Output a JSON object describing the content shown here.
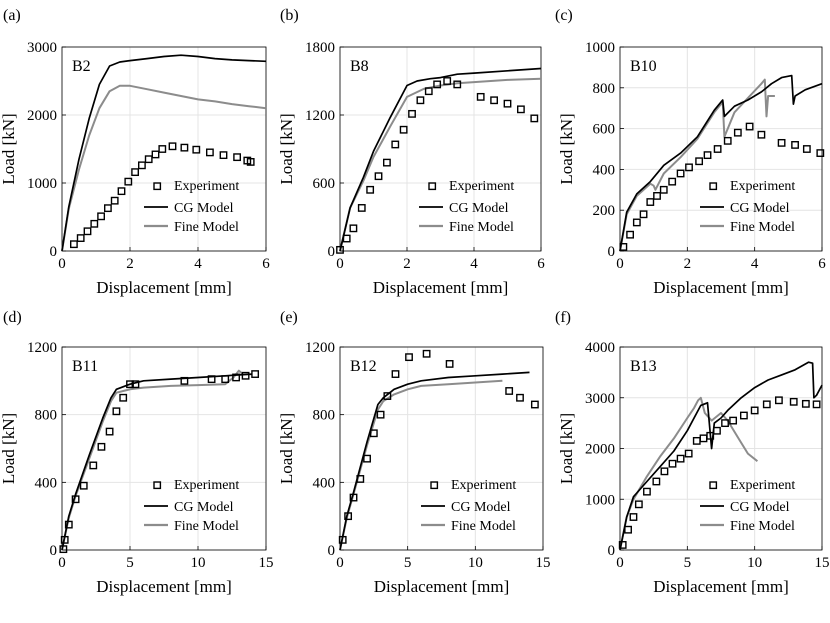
{
  "legend_labels": {
    "experiment": "Experiment",
    "cg": "CG Model",
    "fine": "Fine Model"
  },
  "colors": {
    "cg": "#000000",
    "fine": "#8c8c8c",
    "experiment": "#000000",
    "grid": "#e4e4e4"
  },
  "chart_data": [
    {
      "panel": "(a)",
      "type": "line",
      "title": "B2",
      "xlabel": "Displacement [mm]",
      "ylabel": "Load [kN]",
      "xlim": [
        0,
        6
      ],
      "ylim": [
        0,
        3000
      ],
      "xticks": [
        0,
        2,
        4,
        6
      ],
      "yticks": [
        0,
        1000,
        2000,
        3000
      ],
      "legend": "bottom-right",
      "grid": true,
      "series": [
        {
          "name": "CG Model",
          "x": [
            0,
            0.2,
            0.5,
            0.8,
            1.1,
            1.4,
            1.7,
            2.0,
            2.5,
            3.0,
            3.5,
            4.0,
            4.5,
            5.0,
            5.5,
            6.0
          ],
          "y": [
            0,
            650,
            1350,
            1950,
            2450,
            2720,
            2780,
            2800,
            2830,
            2860,
            2880,
            2860,
            2830,
            2810,
            2800,
            2790
          ]
        },
        {
          "name": "Fine Model",
          "x": [
            0,
            0.2,
            0.5,
            0.8,
            1.1,
            1.4,
            1.7,
            2.0,
            2.5,
            3.0,
            3.5,
            4.0,
            4.5,
            5.0,
            5.5,
            6.0
          ],
          "y": [
            0,
            620,
            1200,
            1700,
            2100,
            2350,
            2430,
            2430,
            2380,
            2330,
            2280,
            2230,
            2200,
            2160,
            2130,
            2100
          ]
        },
        {
          "name": "Experiment",
          "x": [
            0.35,
            0.55,
            0.75,
            0.95,
            1.15,
            1.35,
            1.55,
            1.75,
            1.95,
            2.15,
            2.35,
            2.55,
            2.75,
            2.95,
            3.25,
            3.6,
            3.95,
            4.35,
            4.75,
            5.15,
            5.45,
            5.55
          ],
          "y": [
            100,
            190,
            290,
            400,
            510,
            630,
            740,
            880,
            1020,
            1160,
            1260,
            1350,
            1420,
            1500,
            1540,
            1520,
            1490,
            1450,
            1410,
            1380,
            1330,
            1310
          ]
        }
      ]
    },
    {
      "panel": "(b)",
      "type": "line",
      "title": "B8",
      "xlabel": "Displacement [mm]",
      "ylabel": "Load [kN]",
      "xlim": [
        0,
        6
      ],
      "ylim": [
        0,
        1800
      ],
      "xticks": [
        0,
        2,
        4,
        6
      ],
      "yticks": [
        0,
        600,
        1200,
        1800
      ],
      "legend": "bottom-right",
      "grid": true,
      "series": [
        {
          "name": "CG Model",
          "x": [
            0,
            0.3,
            0.7,
            1.0,
            1.5,
            2.0,
            2.3,
            2.7,
            3.0,
            3.5,
            4.0,
            5.0,
            6.0
          ],
          "y": [
            0,
            380,
            650,
            880,
            1180,
            1460,
            1500,
            1520,
            1530,
            1560,
            1570,
            1590,
            1610
          ]
        },
        {
          "name": "Fine Model",
          "x": [
            0,
            0.3,
            0.7,
            1.0,
            1.5,
            2.0,
            2.5,
            3.0,
            3.5,
            4.0,
            5.0,
            6.0
          ],
          "y": [
            0,
            380,
            620,
            830,
            1100,
            1360,
            1430,
            1460,
            1480,
            1490,
            1510,
            1520
          ]
        },
        {
          "name": "Experiment",
          "x": [
            0,
            0.2,
            0.4,
            0.65,
            0.9,
            1.15,
            1.4,
            1.65,
            1.9,
            2.15,
            2.4,
            2.65,
            2.9,
            3.2,
            3.5,
            4.2,
            4.6,
            5.0,
            5.4,
            5.8
          ],
          "y": [
            10,
            110,
            200,
            380,
            540,
            660,
            780,
            940,
            1070,
            1210,
            1330,
            1410,
            1470,
            1500,
            1470,
            1360,
            1330,
            1300,
            1250,
            1170
          ]
        }
      ]
    },
    {
      "panel": "(c)",
      "type": "line",
      "title": "B10",
      "xlabel": "Displacement [mm]",
      "ylabel": "Load [kN]",
      "xlim": [
        0,
        6
      ],
      "ylim": [
        0,
        1000
      ],
      "xticks": [
        0,
        2,
        4,
        6
      ],
      "yticks": [
        0,
        200,
        400,
        600,
        800,
        1000
      ],
      "legend": "bottom-right",
      "grid": true,
      "series": [
        {
          "name": "CG Model",
          "x": [
            0,
            0.2,
            0.5,
            0.9,
            1.3,
            1.8,
            2.3,
            2.8,
            3.0,
            3.05,
            3.1,
            3.4,
            3.8,
            4.2,
            4.5,
            4.8,
            5.1,
            5.15,
            5.2,
            5.5,
            6.0
          ],
          "y": [
            0,
            190,
            280,
            340,
            420,
            480,
            560,
            690,
            730,
            740,
            660,
            710,
            740,
            780,
            820,
            850,
            860,
            720,
            760,
            790,
            820
          ]
        },
        {
          "name": "Fine Model",
          "x": [
            0,
            0.2,
            0.5,
            0.9,
            1.0,
            1.05,
            1.3,
            1.8,
            2.3,
            2.8,
            3.0,
            3.05,
            3.1,
            3.4,
            3.8,
            4.2,
            4.3,
            4.35,
            4.4,
            4.6
          ],
          "y": [
            0,
            180,
            270,
            330,
            320,
            300,
            380,
            460,
            550,
            680,
            720,
            730,
            560,
            680,
            750,
            820,
            840,
            660,
            760,
            760
          ]
        },
        {
          "name": "Experiment",
          "x": [
            0.1,
            0.3,
            0.5,
            0.7,
            0.9,
            1.1,
            1.3,
            1.55,
            1.8,
            2.05,
            2.35,
            2.6,
            2.9,
            3.2,
            3.5,
            3.85,
            4.2,
            4.8,
            5.2,
            5.55,
            5.95
          ],
          "y": [
            20,
            80,
            140,
            180,
            240,
            270,
            300,
            340,
            380,
            410,
            440,
            470,
            500,
            540,
            580,
            610,
            570,
            530,
            520,
            500,
            480
          ]
        }
      ]
    },
    {
      "panel": "(d)",
      "type": "line",
      "title": "B11",
      "xlabel": "Displacement [mm]",
      "ylabel": "Load [kN]",
      "xlim": [
        0,
        15
      ],
      "ylim": [
        0,
        1200
      ],
      "xticks": [
        0,
        5,
        10,
        15
      ],
      "yticks": [
        0,
        400,
        800,
        1200
      ],
      "legend": "bottom-right",
      "grid": true,
      "series": [
        {
          "name": "CG Model",
          "x": [
            0,
            0.5,
            1.0,
            2.0,
            3.0,
            3.6,
            4.0,
            5.0,
            6.0,
            8.0,
            10.0,
            12.0,
            13.0,
            14.0
          ],
          "y": [
            0,
            200,
            330,
            560,
            780,
            900,
            950,
            980,
            1000,
            1010,
            1020,
            1030,
            1035,
            1040
          ]
        },
        {
          "name": "Fine Model",
          "x": [
            0,
            0.5,
            1.0,
            2.0,
            3.0,
            3.6,
            4.0,
            5.0,
            6.0,
            8.0,
            10.0,
            12.0,
            12.6,
            13.0,
            13.3
          ],
          "y": [
            0,
            190,
            320,
            540,
            760,
            880,
            930,
            950,
            960,
            970,
            975,
            980,
            1020,
            1060,
            1040
          ]
        },
        {
          "name": "Experiment",
          "x": [
            0.1,
            0.2,
            0.5,
            1.0,
            1.6,
            2.3,
            2.9,
            3.5,
            4.0,
            4.5,
            5.0,
            5.4,
            9.0,
            11.0,
            12.0,
            12.8,
            13.5,
            14.2
          ],
          "y": [
            5,
            60,
            150,
            300,
            380,
            500,
            610,
            700,
            820,
            900,
            980,
            980,
            1000,
            1010,
            1010,
            1020,
            1030,
            1040
          ]
        }
      ]
    },
    {
      "panel": "(e)",
      "type": "line",
      "title": "B12",
      "xlabel": "Displacement [mm]",
      "ylabel": "Load [kN]",
      "xlim": [
        0,
        15
      ],
      "ylim": [
        0,
        1200
      ],
      "xticks": [
        0,
        5,
        10,
        15
      ],
      "yticks": [
        0,
        400,
        800,
        1200
      ],
      "legend": "bottom-right",
      "grid": true,
      "series": [
        {
          "name": "CG Model",
          "x": [
            0,
            0.5,
            1.0,
            2.0,
            2.8,
            3.2,
            4.0,
            5.0,
            6.0,
            8.0,
            10.0,
            12.0,
            14.0
          ],
          "y": [
            0,
            200,
            340,
            640,
            860,
            900,
            950,
            980,
            1000,
            1020,
            1030,
            1040,
            1050
          ]
        },
        {
          "name": "Fine Model",
          "x": [
            0,
            0.5,
            1.0,
            2.0,
            2.8,
            3.2,
            4.0,
            5.0,
            6.0,
            8.0,
            10.0,
            12.0
          ],
          "y": [
            0,
            190,
            330,
            620,
            830,
            880,
            920,
            950,
            970,
            980,
            990,
            1000
          ]
        },
        {
          "name": "Experiment",
          "x": [
            0.2,
            0.6,
            1.0,
            1.5,
            2.0,
            2.5,
            3.0,
            3.5,
            4.1,
            5.1,
            6.4,
            8.1,
            12.5,
            13.3,
            14.4
          ],
          "y": [
            60,
            200,
            310,
            420,
            540,
            690,
            800,
            910,
            1040,
            1140,
            1160,
            1100,
            940,
            900,
            860
          ]
        }
      ]
    },
    {
      "panel": "(f)",
      "type": "line",
      "title": "B13",
      "xlabel": "Displacement [mm]",
      "ylabel": "Load [kN]",
      "xlim": [
        0,
        15
      ],
      "ylim": [
        0,
        4000
      ],
      "xticks": [
        0,
        5,
        10,
        15
      ],
      "yticks": [
        0,
        1000,
        2000,
        3000,
        4000
      ],
      "legend": "bottom-right",
      "grid": true,
      "series": [
        {
          "name": "CG Model",
          "x": [
            0,
            0.5,
            1.0,
            2.0,
            3.0,
            4.0,
            5.0,
            6.0,
            6.5,
            6.8,
            7.0,
            7.5,
            8.0,
            9.0,
            10.0,
            11.0,
            12.0,
            13.0,
            14.0,
            14.3,
            14.4,
            14.6,
            15.0
          ],
          "y": [
            0,
            650,
            1050,
            1350,
            1650,
            1950,
            2350,
            2850,
            2900,
            2000,
            2500,
            2600,
            2750,
            3000,
            3200,
            3350,
            3450,
            3550,
            3700,
            3680,
            3000,
            3050,
            3250
          ]
        },
        {
          "name": "Fine Model",
          "x": [
            0,
            0.5,
            1.0,
            2.0,
            3.0,
            4.0,
            5.0,
            5.5,
            5.8,
            6.0,
            6.3,
            6.8,
            7.5,
            8.0,
            8.8,
            9.5,
            10.2
          ],
          "y": [
            0,
            650,
            1000,
            1450,
            1850,
            2200,
            2600,
            2800,
            2950,
            3000,
            2700,
            2550,
            2700,
            2550,
            2200,
            1900,
            1750
          ]
        },
        {
          "name": "Experiment",
          "x": [
            0.2,
            0.6,
            1.0,
            1.4,
            2.0,
            2.7,
            3.3,
            3.9,
            4.5,
            5.1,
            5.7,
            6.2,
            6.7,
            7.2,
            7.8,
            8.4,
            9.2,
            10.0,
            10.9,
            11.8,
            12.9,
            13.8,
            14.6
          ],
          "y": [
            100,
            400,
            650,
            900,
            1150,
            1350,
            1550,
            1700,
            1800,
            1900,
            2150,
            2200,
            2250,
            2350,
            2500,
            2550,
            2650,
            2750,
            2870,
            2950,
            2920,
            2880,
            2870
          ]
        }
      ]
    }
  ]
}
